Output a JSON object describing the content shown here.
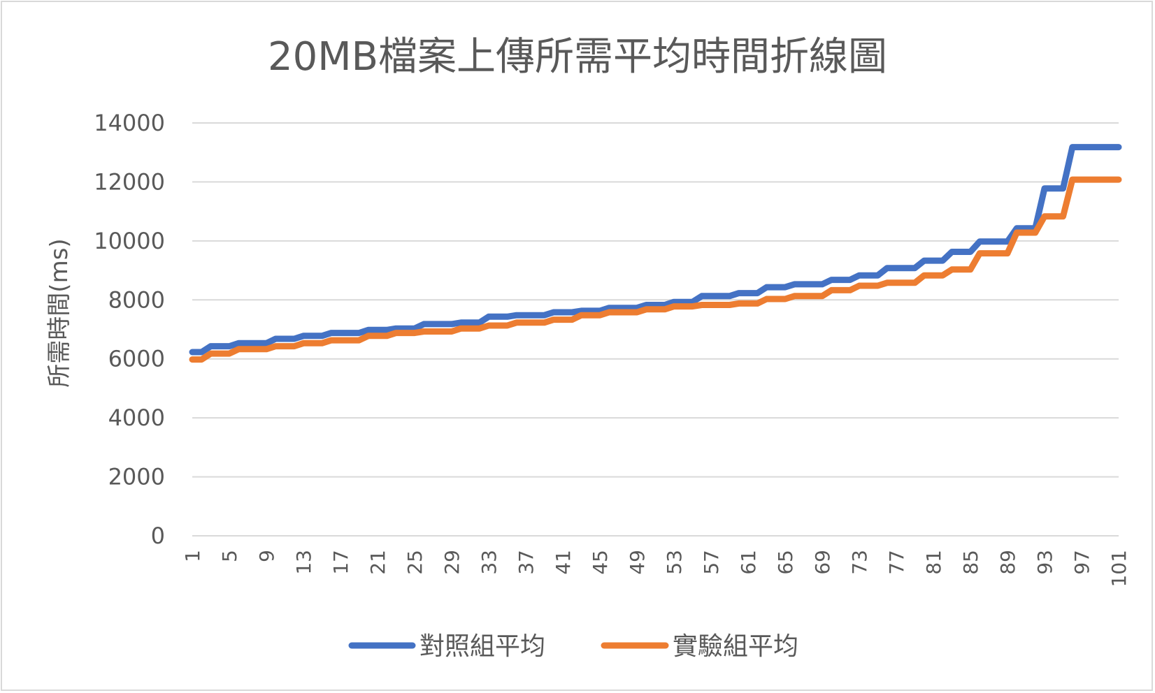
{
  "chart_data": {
    "type": "line",
    "title": "20MB檔案上傳所需平均時間折線圖",
    "xlabel": "",
    "ylabel": "所需時間(ms)",
    "ylim": [
      0,
      14000
    ],
    "yticks": [
      0,
      2000,
      4000,
      6000,
      8000,
      10000,
      12000,
      14000
    ],
    "xticks": [
      1,
      5,
      9,
      13,
      17,
      21,
      25,
      29,
      33,
      37,
      41,
      45,
      49,
      53,
      57,
      61,
      65,
      69,
      73,
      77,
      81,
      85,
      89,
      93,
      97,
      101
    ],
    "x": [
      1,
      2,
      3,
      4,
      5,
      6,
      7,
      8,
      9,
      10,
      11,
      12,
      13,
      14,
      15,
      16,
      17,
      18,
      19,
      20,
      21,
      22,
      23,
      24,
      25,
      26,
      27,
      28,
      29,
      30,
      31,
      32,
      33,
      34,
      35,
      36,
      37,
      38,
      39,
      40,
      41,
      42,
      43,
      44,
      45,
      46,
      47,
      48,
      49,
      50,
      51,
      52,
      53,
      54,
      55,
      56,
      57,
      58,
      59,
      60,
      61,
      62,
      63,
      64,
      65,
      66,
      67,
      68,
      69,
      70,
      71,
      72,
      73,
      74,
      75,
      76,
      77,
      78,
      79,
      80,
      81,
      82,
      83,
      84,
      85,
      86,
      87,
      88,
      89,
      90,
      91,
      92,
      93,
      94,
      95,
      96,
      97,
      98,
      99,
      100,
      101
    ],
    "grid": true,
    "legend": "bottom",
    "series": [
      {
        "name": "對照組平均",
        "color": "#4472C4",
        "values": [
          6230,
          6230,
          6430,
          6430,
          6430,
          6530,
          6530,
          6530,
          6530,
          6680,
          6680,
          6680,
          6780,
          6780,
          6780,
          6880,
          6880,
          6880,
          6880,
          6980,
          6980,
          6980,
          7030,
          7030,
          7030,
          7180,
          7180,
          7180,
          7180,
          7230,
          7230,
          7230,
          7430,
          7430,
          7430,
          7480,
          7480,
          7480,
          7480,
          7580,
          7580,
          7580,
          7630,
          7630,
          7630,
          7730,
          7730,
          7730,
          7730,
          7830,
          7830,
          7830,
          7930,
          7930,
          7930,
          8130,
          8130,
          8130,
          8130,
          8230,
          8230,
          8230,
          8430,
          8430,
          8430,
          8530,
          8530,
          8530,
          8530,
          8680,
          8680,
          8680,
          8830,
          8830,
          8830,
          9080,
          9080,
          9080,
          9080,
          9330,
          9330,
          9330,
          9630,
          9630,
          9630,
          9980,
          9980,
          9980,
          9980,
          10430,
          10430,
          10430,
          11780,
          11780,
          11780,
          13180,
          13180,
          13180,
          13180,
          13180,
          13180
        ]
      },
      {
        "name": "實驗組平均",
        "color": "#ED7D31",
        "values": [
          5980,
          5980,
          6180,
          6180,
          6180,
          6330,
          6330,
          6330,
          6330,
          6430,
          6430,
          6430,
          6530,
          6530,
          6530,
          6630,
          6630,
          6630,
          6630,
          6780,
          6780,
          6780,
          6880,
          6880,
          6880,
          6930,
          6930,
          6930,
          6930,
          7030,
          7030,
          7030,
          7130,
          7130,
          7130,
          7230,
          7230,
          7230,
          7230,
          7330,
          7330,
          7330,
          7480,
          7480,
          7480,
          7580,
          7580,
          7580,
          7580,
          7680,
          7680,
          7680,
          7780,
          7780,
          7780,
          7830,
          7830,
          7830,
          7830,
          7880,
          7880,
          7880,
          8030,
          8030,
          8030,
          8130,
          8130,
          8130,
          8130,
          8330,
          8330,
          8330,
          8480,
          8480,
          8480,
          8580,
          8580,
          8580,
          8580,
          8830,
          8830,
          8830,
          9030,
          9030,
          9030,
          9580,
          9580,
          9580,
          9580,
          10280,
          10280,
          10280,
          10830,
          10830,
          10830,
          12080,
          12080,
          12080,
          12080,
          12080,
          12080
        ]
      }
    ]
  }
}
